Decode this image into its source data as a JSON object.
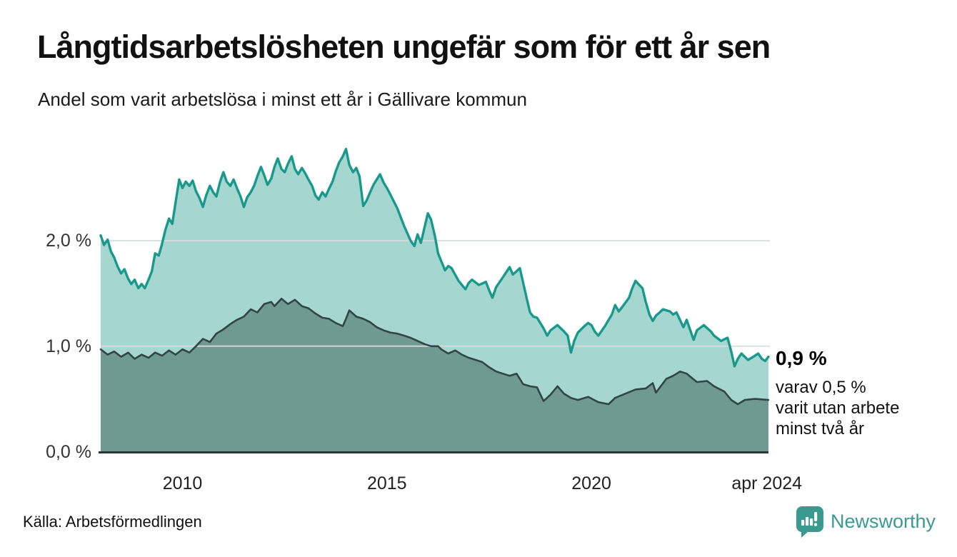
{
  "title": "Långtidsarbetslösheten ungefär som för ett år sen",
  "subtitle": "Andel som varit arbetslösa i minst ett år i Gällivare kommun",
  "source": "Källa: Arbetsförmedlingen",
  "brand": {
    "name": "Newsworthy",
    "color": "#3a9a90",
    "icon": "newsworthy-speech-bubble-chart-icon"
  },
  "annotation": {
    "value_label": "0,9 %",
    "detail_lines": [
      "varav 0,5 %",
      "varit utan arbete",
      "minst två år"
    ]
  },
  "chart_data": {
    "type": "area",
    "title": "Långtidsarbetslösheten ungefär som för ett år sen",
    "subtitle": "Andel som varit arbetslösa i minst ett år i Gällivare kommun",
    "unit": "%",
    "xlim": [
      2008.0,
      2024.33
    ],
    "ylim": [
      0,
      3.05
    ],
    "grid": "horizontal",
    "legend": "none",
    "colors": {
      "total_line": "#19998c",
      "total_fill": "#a5d6d0",
      "twoyear_line": "#2f4547",
      "twoyear_fill": "#6f9a93",
      "gridline": "#d8dcdc",
      "baseline": "#273737"
    },
    "y_ticks": [
      {
        "label": "0,0 %",
        "value": 0
      },
      {
        "label": "1,0 %",
        "value": 1
      },
      {
        "label": "2,0 %",
        "value": 2
      }
    ],
    "x_ticks": [
      {
        "label": "2010",
        "year": 2010
      },
      {
        "label": "2015",
        "year": 2015
      },
      {
        "label": "2020",
        "year": 2020
      },
      {
        "label": "apr 2024",
        "year": 2024.29
      }
    ],
    "series": [
      {
        "name": "Andel arbetslösa minst ett år",
        "end_value": 0.9,
        "points": [
          [
            2008.0,
            2.05
          ],
          [
            2008.08,
            1.96
          ],
          [
            2008.17,
            2.01
          ],
          [
            2008.25,
            1.9
          ],
          [
            2008.33,
            1.84
          ],
          [
            2008.42,
            1.75
          ],
          [
            2008.5,
            1.69
          ],
          [
            2008.58,
            1.73
          ],
          [
            2008.67,
            1.64
          ],
          [
            2008.75,
            1.59
          ],
          [
            2008.83,
            1.63
          ],
          [
            2008.92,
            1.55
          ],
          [
            2009.0,
            1.59
          ],
          [
            2009.08,
            1.55
          ],
          [
            2009.17,
            1.63
          ],
          [
            2009.25,
            1.71
          ],
          [
            2009.33,
            1.88
          ],
          [
            2009.42,
            1.86
          ],
          [
            2009.5,
            1.97
          ],
          [
            2009.58,
            2.1
          ],
          [
            2009.67,
            2.21
          ],
          [
            2009.75,
            2.16
          ],
          [
            2009.83,
            2.36
          ],
          [
            2009.92,
            2.58
          ],
          [
            2010.0,
            2.5
          ],
          [
            2010.08,
            2.56
          ],
          [
            2010.17,
            2.52
          ],
          [
            2010.25,
            2.57
          ],
          [
            2010.33,
            2.47
          ],
          [
            2010.42,
            2.4
          ],
          [
            2010.5,
            2.32
          ],
          [
            2010.58,
            2.43
          ],
          [
            2010.67,
            2.52
          ],
          [
            2010.75,
            2.46
          ],
          [
            2010.83,
            2.42
          ],
          [
            2010.92,
            2.56
          ],
          [
            2011.0,
            2.65
          ],
          [
            2011.08,
            2.56
          ],
          [
            2011.17,
            2.52
          ],
          [
            2011.25,
            2.58
          ],
          [
            2011.33,
            2.5
          ],
          [
            2011.42,
            2.42
          ],
          [
            2011.5,
            2.32
          ],
          [
            2011.58,
            2.41
          ],
          [
            2011.67,
            2.46
          ],
          [
            2011.75,
            2.52
          ],
          [
            2011.83,
            2.61
          ],
          [
            2011.92,
            2.7
          ],
          [
            2012.0,
            2.62
          ],
          [
            2012.08,
            2.53
          ],
          [
            2012.17,
            2.59
          ],
          [
            2012.25,
            2.7
          ],
          [
            2012.33,
            2.78
          ],
          [
            2012.42,
            2.68
          ],
          [
            2012.5,
            2.65
          ],
          [
            2012.58,
            2.73
          ],
          [
            2012.67,
            2.8
          ],
          [
            2012.75,
            2.68
          ],
          [
            2012.83,
            2.63
          ],
          [
            2012.92,
            2.69
          ],
          [
            2013.0,
            2.64
          ],
          [
            2013.08,
            2.58
          ],
          [
            2013.17,
            2.52
          ],
          [
            2013.25,
            2.43
          ],
          [
            2013.33,
            2.39
          ],
          [
            2013.42,
            2.46
          ],
          [
            2013.5,
            2.42
          ],
          [
            2013.58,
            2.49
          ],
          [
            2013.67,
            2.56
          ],
          [
            2013.75,
            2.66
          ],
          [
            2013.83,
            2.74
          ],
          [
            2013.92,
            2.8
          ],
          [
            2014.0,
            2.87
          ],
          [
            2014.08,
            2.72
          ],
          [
            2014.17,
            2.65
          ],
          [
            2014.25,
            2.69
          ],
          [
            2014.33,
            2.61
          ],
          [
            2014.42,
            2.33
          ],
          [
            2014.5,
            2.38
          ],
          [
            2014.58,
            2.45
          ],
          [
            2014.67,
            2.53
          ],
          [
            2014.83,
            2.63
          ],
          [
            2014.92,
            2.55
          ],
          [
            2015.0,
            2.5
          ],
          [
            2015.08,
            2.44
          ],
          [
            2015.25,
            2.31
          ],
          [
            2015.42,
            2.14
          ],
          [
            2015.58,
            2.0
          ],
          [
            2015.67,
            1.95
          ],
          [
            2015.75,
            2.06
          ],
          [
            2015.83,
            1.98
          ],
          [
            2016.0,
            2.26
          ],
          [
            2016.08,
            2.2
          ],
          [
            2016.17,
            2.05
          ],
          [
            2016.25,
            1.88
          ],
          [
            2016.42,
            1.72
          ],
          [
            2016.5,
            1.76
          ],
          [
            2016.58,
            1.74
          ],
          [
            2016.75,
            1.62
          ],
          [
            2016.92,
            1.54
          ],
          [
            2017.0,
            1.6
          ],
          [
            2017.08,
            1.63
          ],
          [
            2017.25,
            1.58
          ],
          [
            2017.42,
            1.61
          ],
          [
            2017.5,
            1.53
          ],
          [
            2017.58,
            1.46
          ],
          [
            2017.67,
            1.56
          ],
          [
            2017.83,
            1.65
          ],
          [
            2018.0,
            1.75
          ],
          [
            2018.08,
            1.68
          ],
          [
            2018.17,
            1.71
          ],
          [
            2018.25,
            1.74
          ],
          [
            2018.42,
            1.45
          ],
          [
            2018.5,
            1.32
          ],
          [
            2018.58,
            1.28
          ],
          [
            2018.67,
            1.27
          ],
          [
            2018.83,
            1.17
          ],
          [
            2018.92,
            1.1
          ],
          [
            2019.0,
            1.15
          ],
          [
            2019.17,
            1.2
          ],
          [
            2019.33,
            1.14
          ],
          [
            2019.42,
            1.1
          ],
          [
            2019.5,
            0.94
          ],
          [
            2019.58,
            1.05
          ],
          [
            2019.67,
            1.13
          ],
          [
            2019.83,
            1.19
          ],
          [
            2019.92,
            1.22
          ],
          [
            2020.0,
            1.2
          ],
          [
            2020.08,
            1.14
          ],
          [
            2020.17,
            1.1
          ],
          [
            2020.33,
            1.19
          ],
          [
            2020.5,
            1.3
          ],
          [
            2020.58,
            1.39
          ],
          [
            2020.67,
            1.33
          ],
          [
            2020.75,
            1.37
          ],
          [
            2020.92,
            1.46
          ],
          [
            2021.0,
            1.55
          ],
          [
            2021.08,
            1.62
          ],
          [
            2021.17,
            1.58
          ],
          [
            2021.25,
            1.55
          ],
          [
            2021.33,
            1.42
          ],
          [
            2021.42,
            1.3
          ],
          [
            2021.5,
            1.24
          ],
          [
            2021.58,
            1.29
          ],
          [
            2021.67,
            1.32
          ],
          [
            2021.75,
            1.35
          ],
          [
            2021.92,
            1.33
          ],
          [
            2022.0,
            1.3
          ],
          [
            2022.08,
            1.32
          ],
          [
            2022.25,
            1.18
          ],
          [
            2022.33,
            1.25
          ],
          [
            2022.5,
            1.06
          ],
          [
            2022.58,
            1.15
          ],
          [
            2022.75,
            1.2
          ],
          [
            2022.92,
            1.14
          ],
          [
            2023.0,
            1.1
          ],
          [
            2023.17,
            1.05
          ],
          [
            2023.33,
            1.08
          ],
          [
            2023.42,
            0.95
          ],
          [
            2023.5,
            0.81
          ],
          [
            2023.58,
            0.88
          ],
          [
            2023.67,
            0.93
          ],
          [
            2023.83,
            0.87
          ],
          [
            2023.92,
            0.89
          ],
          [
            2024.0,
            0.91
          ],
          [
            2024.08,
            0.93
          ],
          [
            2024.17,
            0.88
          ],
          [
            2024.25,
            0.86
          ],
          [
            2024.33,
            0.9
          ]
        ]
      },
      {
        "name": "varav utan arbete minst två år",
        "end_value": 0.5,
        "points": [
          [
            2008.0,
            0.97
          ],
          [
            2008.17,
            0.92
          ],
          [
            2008.33,
            0.95
          ],
          [
            2008.5,
            0.9
          ],
          [
            2008.67,
            0.94
          ],
          [
            2008.83,
            0.88
          ],
          [
            2009.0,
            0.92
          ],
          [
            2009.17,
            0.89
          ],
          [
            2009.33,
            0.94
          ],
          [
            2009.5,
            0.91
          ],
          [
            2009.67,
            0.96
          ],
          [
            2009.83,
            0.92
          ],
          [
            2010.0,
            0.97
          ],
          [
            2010.17,
            0.94
          ],
          [
            2010.33,
            1.0
          ],
          [
            2010.5,
            1.07
          ],
          [
            2010.67,
            1.04
          ],
          [
            2010.83,
            1.12
          ],
          [
            2011.0,
            1.16
          ],
          [
            2011.17,
            1.21
          ],
          [
            2011.33,
            1.25
          ],
          [
            2011.5,
            1.28
          ],
          [
            2011.67,
            1.35
          ],
          [
            2011.83,
            1.32
          ],
          [
            2012.0,
            1.4
          ],
          [
            2012.17,
            1.42
          ],
          [
            2012.25,
            1.38
          ],
          [
            2012.42,
            1.45
          ],
          [
            2012.58,
            1.4
          ],
          [
            2012.75,
            1.44
          ],
          [
            2012.92,
            1.38
          ],
          [
            2013.08,
            1.36
          ],
          [
            2013.25,
            1.31
          ],
          [
            2013.42,
            1.27
          ],
          [
            2013.58,
            1.26
          ],
          [
            2013.75,
            1.22
          ],
          [
            2013.92,
            1.19
          ],
          [
            2014.0,
            1.26
          ],
          [
            2014.08,
            1.34
          ],
          [
            2014.25,
            1.28
          ],
          [
            2014.42,
            1.26
          ],
          [
            2014.58,
            1.23
          ],
          [
            2014.75,
            1.18
          ],
          [
            2014.92,
            1.15
          ],
          [
            2015.08,
            1.13
          ],
          [
            2015.25,
            1.12
          ],
          [
            2015.42,
            1.1
          ],
          [
            2015.58,
            1.08
          ],
          [
            2015.75,
            1.05
          ],
          [
            2015.92,
            1.02
          ],
          [
            2016.08,
            1.0
          ],
          [
            2016.25,
            1.0
          ],
          [
            2016.33,
            0.97
          ],
          [
            2016.5,
            0.93
          ],
          [
            2016.67,
            0.96
          ],
          [
            2016.83,
            0.92
          ],
          [
            2017.0,
            0.89
          ],
          [
            2017.17,
            0.87
          ],
          [
            2017.33,
            0.85
          ],
          [
            2017.5,
            0.8
          ],
          [
            2017.67,
            0.76
          ],
          [
            2017.83,
            0.74
          ],
          [
            2018.0,
            0.72
          ],
          [
            2018.17,
            0.74
          ],
          [
            2018.33,
            0.64
          ],
          [
            2018.5,
            0.62
          ],
          [
            2018.67,
            0.61
          ],
          [
            2018.83,
            0.48
          ],
          [
            2019.0,
            0.54
          ],
          [
            2019.17,
            0.62
          ],
          [
            2019.33,
            0.55
          ],
          [
            2019.5,
            0.51
          ],
          [
            2019.67,
            0.49
          ],
          [
            2019.92,
            0.52
          ],
          [
            2020.17,
            0.47
          ],
          [
            2020.42,
            0.45
          ],
          [
            2020.58,
            0.51
          ],
          [
            2020.83,
            0.55
          ],
          [
            2021.08,
            0.59
          ],
          [
            2021.33,
            0.6
          ],
          [
            2021.5,
            0.65
          ],
          [
            2021.58,
            0.56
          ],
          [
            2021.83,
            0.69
          ],
          [
            2022.0,
            0.72
          ],
          [
            2022.17,
            0.76
          ],
          [
            2022.33,
            0.74
          ],
          [
            2022.58,
            0.66
          ],
          [
            2022.83,
            0.67
          ],
          [
            2023.0,
            0.62
          ],
          [
            2023.25,
            0.57
          ],
          [
            2023.42,
            0.49
          ],
          [
            2023.58,
            0.45
          ],
          [
            2023.75,
            0.49
          ],
          [
            2024.0,
            0.5
          ],
          [
            2024.33,
            0.49
          ]
        ]
      }
    ]
  }
}
